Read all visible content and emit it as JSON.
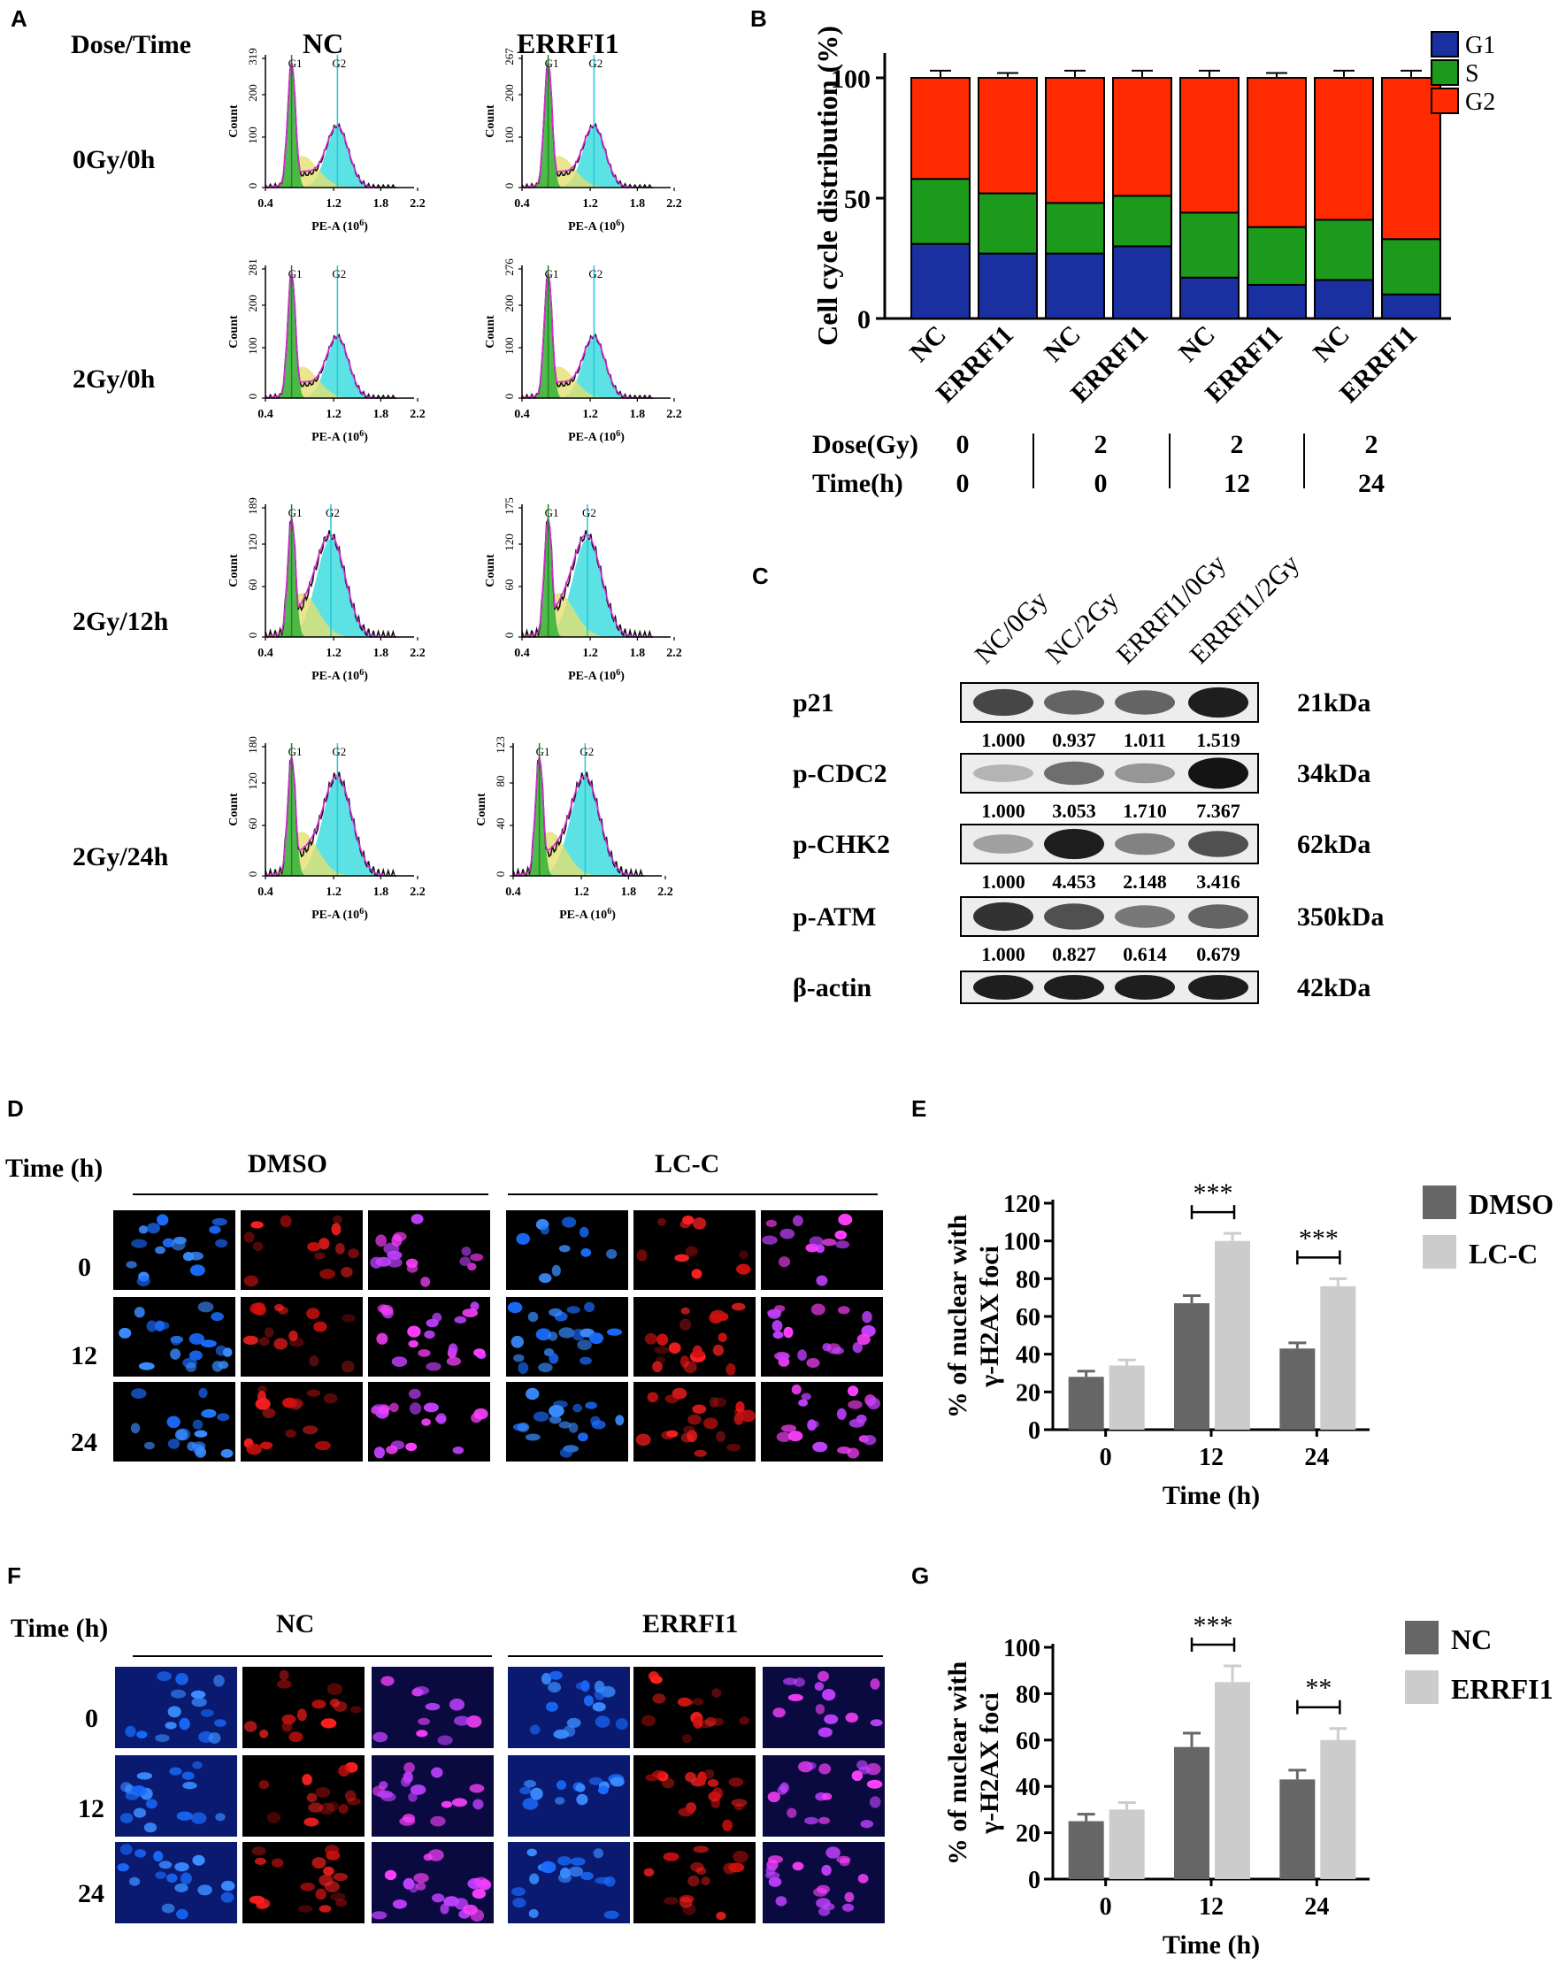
{
  "panel_letters": [
    "A",
    "B",
    "C",
    "D",
    "E",
    "F",
    "G"
  ],
  "panelA": {
    "corner_label": "Dose/Time",
    "columns": [
      "NC",
      "ERRFI1"
    ],
    "rows": [
      "0Gy/0h",
      "2Gy/0h",
      "2Gy/12h",
      "2Gy/24h"
    ],
    "ylabel": "Count",
    "xlabel_text": "PE-A (10",
    "xlabel_exp": "6",
    "xlabel_close": ")",
    "x_ticks": [
      "0.4",
      "1.2",
      "1.8",
      "2.2"
    ],
    "peak_labels": [
      "G1",
      "G2"
    ],
    "histograms": [
      [
        {
          "ymax": "319",
          "ticks": [
            "100",
            "200"
          ]
        },
        {
          "ymax": "267",
          "ticks": [
            "100",
            "200"
          ]
        }
      ],
      [
        {
          "ymax": "281",
          "ticks": [
            "100",
            "200"
          ]
        },
        {
          "ymax": "276",
          "ticks": [
            "100",
            "200"
          ]
        }
      ],
      [
        {
          "ymax": "189",
          "ticks": [
            "60",
            "120"
          ]
        },
        {
          "ymax": "175",
          "ticks": [
            "60",
            "120"
          ]
        }
      ],
      [
        {
          "ymax": "180",
          "ticks": [
            "60",
            "120"
          ]
        },
        {
          "ymax": "123",
          "ticks": [
            "40",
            "80"
          ]
        }
      ]
    ]
  },
  "panelC": {
    "lanes": [
      "NC/0Gy",
      "NC/2Gy",
      "ERRFI1/0Gy",
      "ERRFI1/2Gy"
    ],
    "proteins": [
      {
        "name": "p21",
        "size": "21kDa",
        "values": [
          "1.000",
          "0.937",
          "1.011",
          "1.519"
        ],
        "intensity": [
          0.75,
          0.6,
          0.6,
          0.95
        ]
      },
      {
        "name": "p-CDC2",
        "size": "34kDa",
        "values": [
          "1.000",
          "3.053",
          "1.710",
          "7.367"
        ],
        "intensity": [
          0.2,
          0.55,
          0.35,
          1.0
        ]
      },
      {
        "name": "p-CHK2",
        "size": "62kDa",
        "values": [
          "1.000",
          "4.453",
          "2.148",
          "3.416"
        ],
        "intensity": [
          0.3,
          0.95,
          0.45,
          0.7
        ]
      },
      {
        "name": "p-ATM",
        "size": "350kDa",
        "values": [
          "1.000",
          "0.827",
          "0.614",
          "0.679"
        ],
        "intensity": [
          0.85,
          0.7,
          0.5,
          0.6
        ]
      },
      {
        "name": "β-actin",
        "size": "42kDa",
        "values": [],
        "intensity": [
          0.95,
          0.95,
          0.95,
          0.95
        ]
      }
    ]
  },
  "panelD": {
    "time_label": "Time (h)",
    "groups": [
      "DMSO",
      "LC-C"
    ],
    "rows": [
      "0",
      "12",
      "24"
    ]
  },
  "panelF": {
    "time_label": "Time (h)",
    "groups": [
      "NC",
      "ERRFI1"
    ],
    "rows": [
      "0",
      "12",
      "24"
    ]
  },
  "chart_data": [
    {
      "id": "B",
      "type": "bar",
      "stacked": true,
      "ylabel": "Cell cycle distribution (%)",
      "ylim": [
        0,
        150
      ],
      "yticks": [
        0,
        50,
        100,
        150
      ],
      "categories": [
        "NC",
        "ERRFI1",
        "NC",
        "ERRFI1",
        "NC",
        "ERRFI1",
        "NC",
        "ERRFI1"
      ],
      "series": [
        {
          "name": "G1",
          "color": "#1a2fa0",
          "values": [
            31,
            27,
            27,
            30,
            17,
            14,
            16,
            10
          ]
        },
        {
          "name": "S",
          "color": "#1c9a1c",
          "values": [
            27,
            25,
            21,
            21,
            27,
            24,
            25,
            23
          ]
        },
        {
          "name": "G2",
          "color": "#ff2a00",
          "values": [
            42,
            48,
            52,
            49,
            56,
            62,
            59,
            67
          ]
        }
      ],
      "errors": {
        "G1": [
          4,
          3,
          3,
          5,
          3,
          3,
          3,
          3
        ],
        "S": [
          3,
          3,
          4,
          3,
          4,
          5,
          4,
          5
        ],
        "G2": [
          3,
          2,
          3,
          3,
          3,
          2,
          3,
          3
        ]
      },
      "dose_label": "Dose(Gy)",
      "time_label": "Time(h)",
      "doses": [
        "0",
        "2",
        "2",
        "2"
      ],
      "times": [
        "0",
        "0",
        "12",
        "24"
      ],
      "legend": "top-right"
    },
    {
      "id": "E",
      "type": "bar",
      "ylabel_line1": "% of nuclear with",
      "ylabel_line2": "γ-H2AX foci",
      "xlabel": "Time (h)",
      "categories": [
        "0",
        "12",
        "24"
      ],
      "ylim": [
        0,
        120
      ],
      "yticks": [
        0,
        20,
        40,
        60,
        80,
        100,
        120
      ],
      "series": [
        {
          "name": "DMSO",
          "color": "#666666",
          "values": [
            28,
            67,
            43
          ],
          "errors": [
            3,
            4,
            3
          ]
        },
        {
          "name": "LC-C",
          "color": "#cccccc",
          "values": [
            34,
            100,
            76
          ],
          "errors": [
            3,
            4,
            4
          ]
        }
      ],
      "significance": [
        {
          "category": "12",
          "label": "***"
        },
        {
          "category": "24",
          "label": "***"
        }
      ],
      "legend": "right"
    },
    {
      "id": "G",
      "type": "bar",
      "ylabel_line1": "% of nuclear with",
      "ylabel_line2": "γ-H2AX foci",
      "xlabel": "Time (h)",
      "categories": [
        "0",
        "12",
        "24"
      ],
      "ylim": [
        0,
        100
      ],
      "yticks": [
        0,
        20,
        40,
        60,
        80,
        100
      ],
      "series": [
        {
          "name": "NC",
          "color": "#666666",
          "values": [
            25,
            57,
            43
          ],
          "errors": [
            3,
            6,
            4
          ]
        },
        {
          "name": "ERRFI1",
          "color": "#cccccc",
          "values": [
            30,
            85,
            60
          ],
          "errors": [
            3,
            7,
            5
          ]
        }
      ],
      "significance": [
        {
          "category": "12",
          "label": "***"
        },
        {
          "category": "24",
          "label": "**"
        }
      ],
      "legend": "right"
    }
  ]
}
